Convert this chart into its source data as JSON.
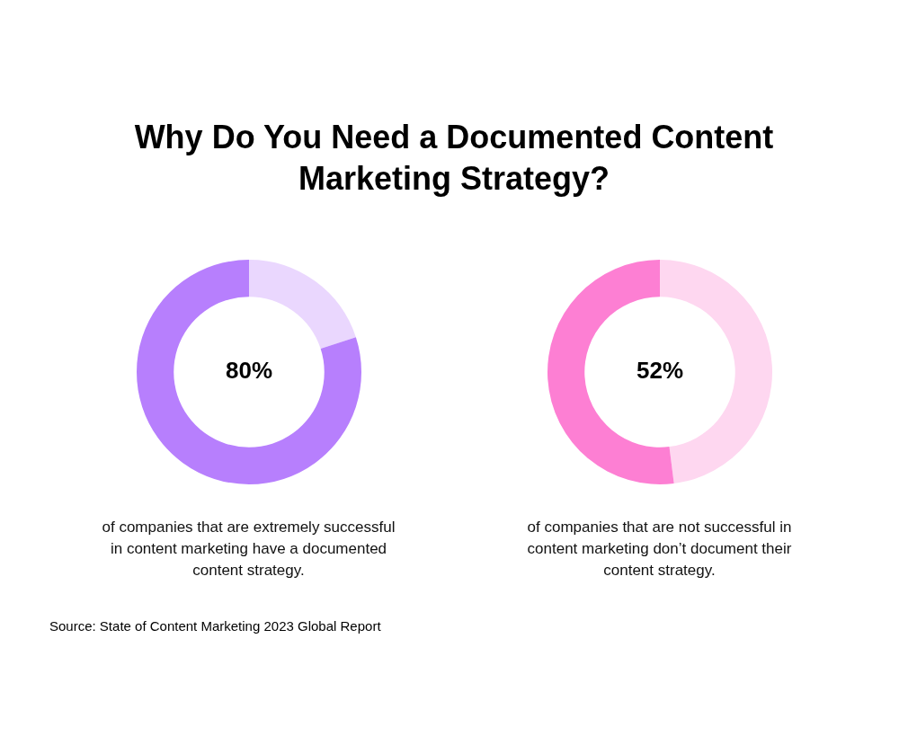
{
  "chart_data": [
    {
      "type": "donut",
      "title": "Why Do You Need a Documented Content Marketing Strategy?",
      "categories": [
        null,
        null
      ],
      "values": [
        20,
        80
      ],
      "colors": [
        "#ead7fe",
        "#b77ffd"
      ],
      "value_labels": [
        null,
        "80%"
      ],
      "annotations": [
        "of companies that are extremely successful in content marketing have a documented content strategy."
      ]
    },
    {
      "type": "donut",
      "categories": [
        null,
        null
      ],
      "values": [
        48,
        52
      ],
      "colors": [
        "#fed7f0",
        "#fd7fd3"
      ],
      "value_labels": [
        null,
        "52%"
      ],
      "annotations": [
        "of companies that are not successful in content marketing don’t document their content strategy.",
        "Source: State of Content Marketing 2023 Global Report"
      ]
    }
  ]
}
